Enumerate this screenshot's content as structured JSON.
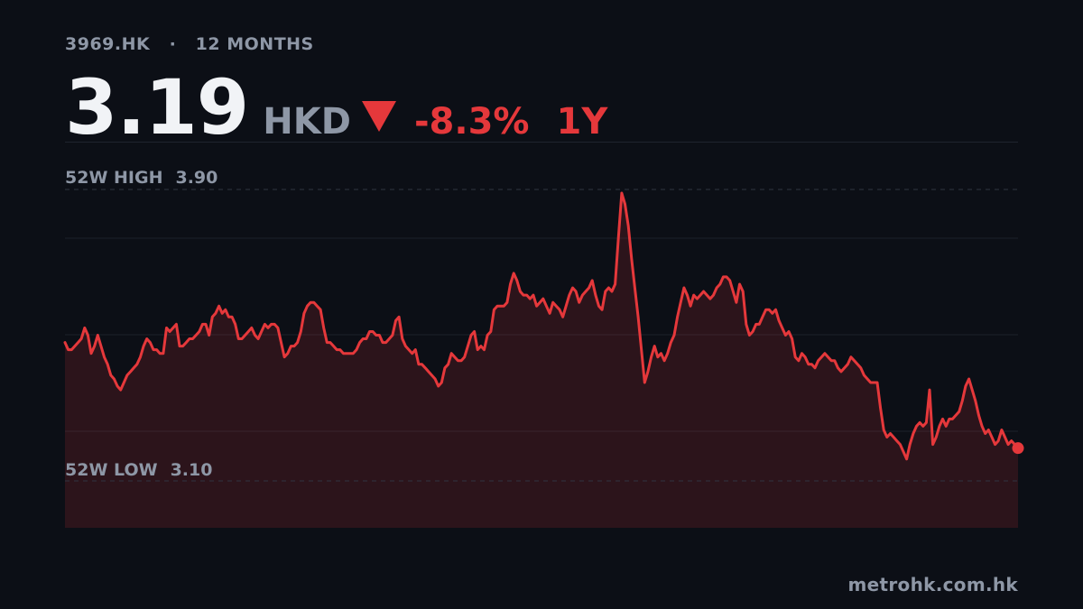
{
  "header": {
    "symbol": "3969.HK",
    "separator": "·",
    "window": "12 MONTHS",
    "price": "3.19",
    "currency": "HKD",
    "change": "-8.3%",
    "period": "1Y"
  },
  "footer": {
    "source": "metrohk.com.hk"
  },
  "colors": {
    "background": "#0c0f16",
    "line": "#e5383b",
    "muted_text": "#8e97a6",
    "grid": "#1f242e"
  },
  "chart_data": {
    "type": "area",
    "ylim": [
      3.05,
      3.92
    ],
    "high": {
      "label": "52W HIGH",
      "value": 3.9
    },
    "low": {
      "label": "52W LOW",
      "value": 3.1
    },
    "last_value": 3.19,
    "values": [
      3.48,
      3.46,
      3.46,
      3.47,
      3.48,
      3.49,
      3.52,
      3.5,
      3.45,
      3.47,
      3.5,
      3.47,
      3.44,
      3.42,
      3.39,
      3.38,
      3.36,
      3.35,
      3.37,
      3.39,
      3.4,
      3.41,
      3.42,
      3.44,
      3.47,
      3.49,
      3.48,
      3.46,
      3.46,
      3.45,
      3.45,
      3.52,
      3.51,
      3.52,
      3.53,
      3.47,
      3.47,
      3.48,
      3.49,
      3.49,
      3.5,
      3.51,
      3.53,
      3.53,
      3.5,
      3.55,
      3.56,
      3.58,
      3.56,
      3.57,
      3.55,
      3.55,
      3.53,
      3.49,
      3.49,
      3.5,
      3.51,
      3.52,
      3.5,
      3.49,
      3.51,
      3.53,
      3.52,
      3.53,
      3.53,
      3.52,
      3.48,
      3.44,
      3.45,
      3.47,
      3.47,
      3.48,
      3.51,
      3.56,
      3.58,
      3.59,
      3.59,
      3.58,
      3.57,
      3.52,
      3.48,
      3.48,
      3.47,
      3.46,
      3.46,
      3.45,
      3.45,
      3.45,
      3.45,
      3.46,
      3.48,
      3.49,
      3.49,
      3.51,
      3.51,
      3.5,
      3.5,
      3.48,
      3.48,
      3.49,
      3.5,
      3.54,
      3.55,
      3.49,
      3.47,
      3.46,
      3.45,
      3.46,
      3.42,
      3.42,
      3.41,
      3.4,
      3.39,
      3.38,
      3.36,
      3.37,
      3.41,
      3.42,
      3.45,
      3.44,
      3.43,
      3.43,
      3.44,
      3.47,
      3.5,
      3.51,
      3.46,
      3.47,
      3.46,
      3.5,
      3.51,
      3.57,
      3.58,
      3.58,
      3.58,
      3.59,
      3.64,
      3.67,
      3.65,
      3.62,
      3.61,
      3.61,
      3.6,
      3.61,
      3.58,
      3.59,
      3.6,
      3.58,
      3.56,
      3.59,
      3.58,
      3.57,
      3.55,
      3.58,
      3.61,
      3.63,
      3.62,
      3.59,
      3.61,
      3.62,
      3.63,
      3.65,
      3.61,
      3.58,
      3.57,
      3.62,
      3.63,
      3.62,
      3.64,
      3.77,
      3.89,
      3.86,
      3.8,
      3.71,
      3.63,
      3.55,
      3.46,
      3.37,
      3.4,
      3.44,
      3.47,
      3.44,
      3.45,
      3.43,
      3.45,
      3.48,
      3.5,
      3.55,
      3.59,
      3.63,
      3.61,
      3.58,
      3.61,
      3.6,
      3.61,
      3.62,
      3.61,
      3.6,
      3.61,
      3.63,
      3.64,
      3.66,
      3.66,
      3.65,
      3.62,
      3.59,
      3.64,
      3.62,
      3.53,
      3.5,
      3.51,
      3.53,
      3.53,
      3.55,
      3.57,
      3.57,
      3.56,
      3.57,
      3.54,
      3.52,
      3.5,
      3.51,
      3.49,
      3.44,
      3.43,
      3.45,
      3.44,
      3.42,
      3.42,
      3.41,
      3.43,
      3.44,
      3.45,
      3.44,
      3.43,
      3.43,
      3.41,
      3.4,
      3.41,
      3.42,
      3.44,
      3.43,
      3.42,
      3.41,
      3.39,
      3.38,
      3.37,
      3.37,
      3.37,
      3.3,
      3.24,
      3.22,
      3.23,
      3.22,
      3.21,
      3.2,
      3.18,
      3.16,
      3.2,
      3.23,
      3.25,
      3.26,
      3.25,
      3.26,
      3.35,
      3.2,
      3.22,
      3.25,
      3.27,
      3.25,
      3.27,
      3.27,
      3.28,
      3.29,
      3.32,
      3.36,
      3.38,
      3.35,
      3.32,
      3.28,
      3.25,
      3.23,
      3.24,
      3.22,
      3.2,
      3.21,
      3.24,
      3.22,
      3.2,
      3.21,
      3.2,
      3.19
    ]
  }
}
